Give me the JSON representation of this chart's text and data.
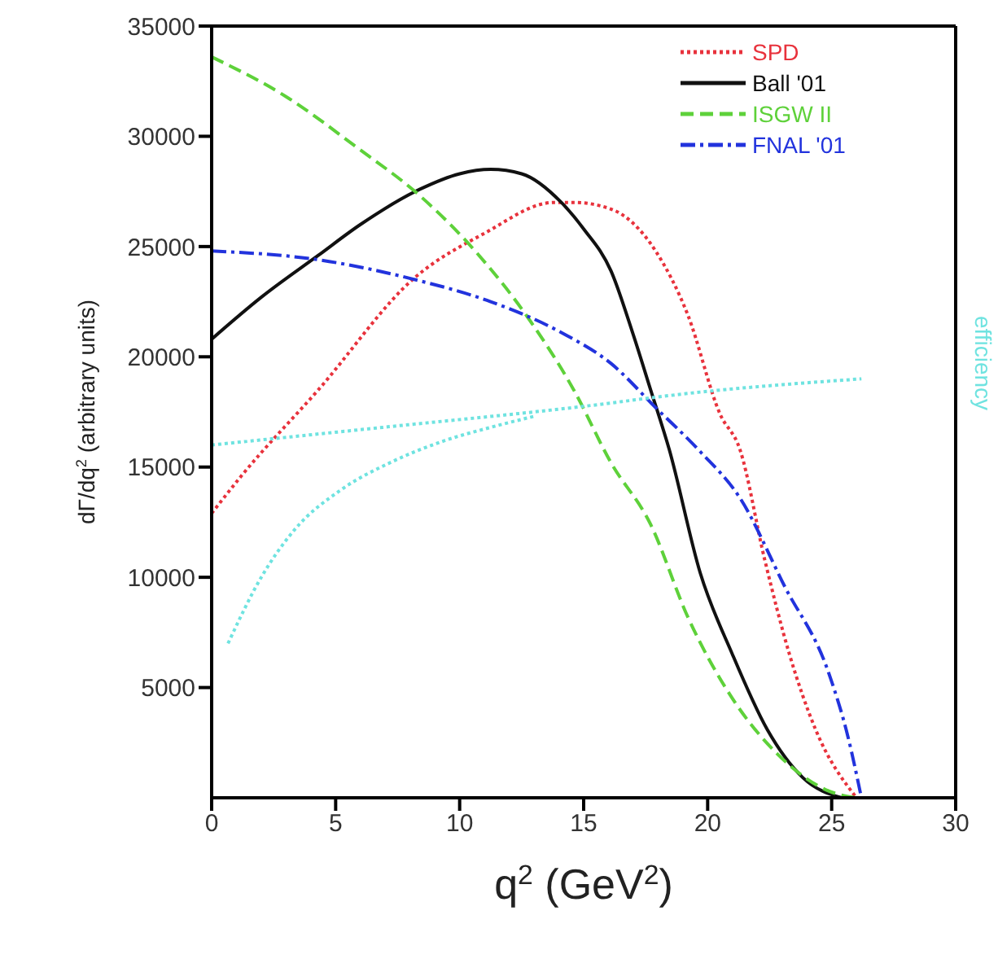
{
  "chart_data": {
    "type": "line",
    "xlabel": "q$^{2}$ (GeV$^{2}$)",
    "ylabel": "dΓ/dq$^{2}$ (arbitrary units)",
    "y2label": "efficiency",
    "xlim": [
      0,
      30
    ],
    "xticks": [
      0,
      5,
      10,
      15,
      20,
      25,
      30
    ],
    "ylim": [
      0,
      35000
    ],
    "yticks": [
      5000,
      10000,
      15000,
      20000,
      25000,
      30000,
      35000
    ],
    "legend": "top right",
    "marker": "none",
    "series": [
      {
        "name": "SPD",
        "color": "#e8323c",
        "line_style": "dotted",
        "x": [
          0,
          1.2,
          4.3,
          8.2,
          11,
          13.8,
          14.6,
          16.1,
          17.9,
          19.2,
          20.5,
          21.3,
          22.3,
          23.3,
          24.35,
          26
        ],
        "values": [
          12900,
          14600,
          18500,
          23600,
          25600,
          27000,
          27000,
          26700,
          24800,
          21900,
          17400,
          15800,
          10800,
          6500,
          3100,
          0
        ]
      },
      {
        "name": "Ball '01",
        "color": "#111111",
        "line_style": "solid",
        "x": [
          0,
          2,
          4.3,
          6,
          8.4,
          10,
          11.25,
          12.5,
          14.1,
          15,
          16.1,
          17,
          17.7,
          18.45,
          19.7,
          21,
          22.4,
          23.85,
          25.4
        ],
        "values": [
          20800,
          22700,
          24600,
          26000,
          27600,
          28300,
          28500,
          28300,
          27000,
          25800,
          23900,
          21000,
          18500,
          15800,
          10200,
          6500,
          3100,
          900,
          0
        ]
      },
      {
        "name": "ISGW II",
        "color": "#5ed13a",
        "line_style": "dashed",
        "x": [
          0,
          3,
          5.85,
          8.4,
          10.7,
          12.8,
          14.6,
          16.1,
          17.7,
          19.2,
          21,
          22.8,
          24.9,
          26
        ],
        "values": [
          33600,
          31800,
          29500,
          27300,
          24700,
          21700,
          18500,
          15200,
          12400,
          8200,
          4500,
          2000,
          300,
          0
        ]
      },
      {
        "name": "FNAL '01",
        "color": "#2233dd",
        "line_style": "dashdot",
        "x": [
          0,
          4.3,
          8.2,
          11.25,
          14.1,
          16.1,
          17.9,
          19.7,
          21.3,
          23.1,
          24.9,
          25.65,
          26.2
        ],
        "values": [
          24800,
          24400,
          23500,
          22500,
          21100,
          19700,
          17700,
          15700,
          13600,
          9600,
          5600,
          2800,
          0
        ]
      },
      {
        "color": "#6fe3e0",
        "line_style": "dotted",
        "x": [
          0,
          6.9,
          14.6,
          19.7,
          26.2
        ],
        "values": [
          16000,
          16800,
          17700,
          18400,
          19000
        ]
      },
      {
        "color": "#6fe3e0",
        "line_style": "dotted",
        "x": [
          0.66,
          2,
          3.3,
          5.26,
          7.2,
          9.4,
          11.25,
          13
        ],
        "values": [
          7000,
          10000,
          12100,
          14000,
          15200,
          16200,
          16800,
          17300
        ]
      }
    ]
  }
}
